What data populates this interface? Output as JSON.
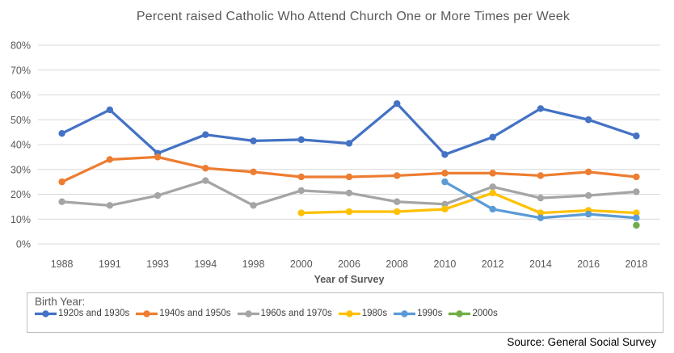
{
  "chart_data": {
    "type": "line",
    "title": "Percent raised Catholic Who Attend Church One or More Times per Week",
    "xlabel": "Year of Survey",
    "ylabel": "",
    "ylim": [
      0,
      80
    ],
    "ytick_step": 10,
    "ytick_suffix": "%",
    "grid": true,
    "legend_position": "bottom",
    "categories": [
      "1988",
      "1991",
      "1993",
      "1994",
      "1998",
      "2000",
      "2006",
      "2008",
      "2010",
      "2012",
      "2014",
      "2016",
      "2018"
    ],
    "series": [
      {
        "name": "1920s and 1930s",
        "color": "#4472C4",
        "values": [
          44.5,
          54,
          36.5,
          44,
          41.5,
          42,
          40.5,
          56.5,
          36,
          43,
          54.5,
          50,
          43.5
        ]
      },
      {
        "name": "1940s and 1950s",
        "color": "#ED7D31",
        "values": [
          25,
          34,
          35,
          30.5,
          29,
          27,
          27,
          27.5,
          28.5,
          28.5,
          27.5,
          29,
          27
        ]
      },
      {
        "name": "1960s and 1970s",
        "color": "#A5A5A5",
        "values": [
          17,
          15.5,
          19.5,
          25.5,
          15.5,
          21.5,
          20.5,
          17,
          16,
          23,
          18.5,
          19.5,
          21
        ]
      },
      {
        "name": "1980s",
        "color": "#FFC000",
        "values": [
          null,
          null,
          null,
          null,
          null,
          12.5,
          13,
          13,
          14,
          20.5,
          12.5,
          13.5,
          12.5
        ]
      },
      {
        "name": "1990s",
        "color": "#5B9BD5",
        "values": [
          null,
          null,
          null,
          null,
          null,
          null,
          null,
          null,
          25,
          14,
          10.5,
          12,
          10.5
        ]
      },
      {
        "name": "2000s",
        "color": "#70AD47",
        "values": [
          null,
          null,
          null,
          null,
          null,
          null,
          null,
          null,
          null,
          null,
          null,
          null,
          7.5
        ]
      }
    ]
  },
  "legend": {
    "title": "Birth Year:"
  },
  "source": {
    "label": "Source: General Social Survey"
  },
  "colors": {
    "grid": "#D9D9D9",
    "axis_text": "#595959",
    "title_text": "#595959",
    "xlabel_text": "#595959",
    "legend_border": "#BFBFBF",
    "source_text": "#000000"
  }
}
